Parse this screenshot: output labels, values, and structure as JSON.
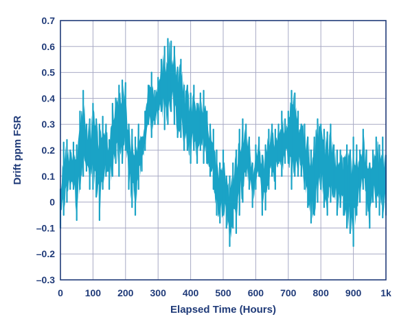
{
  "chart_data": {
    "type": "area",
    "title": "",
    "xlabel": "Elapsed Time (Hours)",
    "ylabel": "Drift ppm FSR",
    "xlim": [
      0,
      1000
    ],
    "ylim": [
      -0.3,
      0.7
    ],
    "x_ticks": [
      {
        "value": 0,
        "label": "0"
      },
      {
        "value": 100,
        "label": "100"
      },
      {
        "value": 200,
        "label": "200"
      },
      {
        "value": 300,
        "label": "300"
      },
      {
        "value": 400,
        "label": "400"
      },
      {
        "value": 500,
        "label": "500"
      },
      {
        "value": 600,
        "label": "600"
      },
      {
        "value": 700,
        "label": "700"
      },
      {
        "value": 800,
        "label": "800"
      },
      {
        "value": 900,
        "label": "900"
      },
      {
        "value": 1000,
        "label": "1k"
      }
    ],
    "y_ticks": [
      {
        "value": 0.7,
        "label": "0.7"
      },
      {
        "value": 0.6,
        "label": "0.6"
      },
      {
        "value": 0.5,
        "label": "0.5"
      },
      {
        "value": 0.4,
        "label": "0.4"
      },
      {
        "value": 0.3,
        "label": "0.3"
      },
      {
        "value": 0.2,
        "label": "0.2"
      },
      {
        "value": 0.1,
        "label": "0.1"
      },
      {
        "value": 0,
        "label": "0"
      },
      {
        "value": -0.1,
        "label": "–0.1"
      },
      {
        "value": -0.2,
        "label": "–0.2"
      },
      {
        "value": -0.3,
        "label": "–0.3"
      }
    ],
    "grid": true,
    "series_color": "#1aa3c6",
    "axis_text_color": "#1f3a78",
    "grid_color": "#a7a9c4",
    "series": [
      {
        "name": "",
        "x": [
          0,
          10,
          20,
          30,
          40,
          50,
          60,
          70,
          80,
          90,
          100,
          110,
          120,
          130,
          140,
          150,
          160,
          170,
          180,
          190,
          200,
          210,
          220,
          230,
          240,
          250,
          260,
          270,
          280,
          290,
          300,
          310,
          320,
          330,
          340,
          350,
          360,
          370,
          380,
          390,
          400,
          410,
          420,
          430,
          440,
          450,
          460,
          470,
          480,
          490,
          500,
          510,
          520,
          530,
          540,
          550,
          560,
          570,
          580,
          590,
          600,
          610,
          620,
          630,
          640,
          650,
          660,
          670,
          680,
          690,
          700,
          710,
          720,
          730,
          740,
          750,
          760,
          770,
          780,
          790,
          800,
          810,
          820,
          830,
          840,
          850,
          860,
          870,
          880,
          890,
          900,
          910,
          920,
          930,
          940,
          950,
          960,
          970,
          980,
          990,
          1000
        ],
        "min": [
          -0.1,
          -0.05,
          0.0,
          0.05,
          0.05,
          -0.07,
          0.05,
          0.1,
          0.12,
          0.05,
          0.05,
          0.02,
          -0.07,
          0.05,
          0.1,
          0.05,
          0.1,
          0.15,
          0.1,
          0.15,
          0.2,
          0.05,
          -0.02,
          -0.05,
          0.05,
          0.12,
          0.2,
          0.3,
          0.25,
          0.3,
          0.3,
          0.35,
          0.28,
          0.3,
          0.35,
          0.3,
          0.25,
          0.25,
          0.2,
          0.2,
          0.15,
          0.2,
          0.15,
          0.2,
          0.15,
          0.15,
          0.1,
          0.05,
          -0.05,
          -0.08,
          -0.05,
          -0.1,
          -0.17,
          -0.1,
          -0.12,
          -0.05,
          0.0,
          0.1,
          0.05,
          -0.02,
          0.05,
          0.1,
          -0.05,
          -0.03,
          0.05,
          0.1,
          0.05,
          0.15,
          0.1,
          0.15,
          0.15,
          0.05,
          0.1,
          0.1,
          0.1,
          0.05,
          -0.02,
          -0.08,
          -0.05,
          0.0,
          0.05,
          -0.02,
          -0.05,
          0.0,
          0.02,
          -0.05,
          -0.02,
          -0.05,
          -0.1,
          -0.12,
          -0.17,
          -0.05,
          0.0,
          0.05,
          -0.05,
          -0.1,
          0.0,
          -0.02,
          -0.05,
          -0.06,
          -0.05
        ],
        "max": [
          0.05,
          0.23,
          0.24,
          0.2,
          0.23,
          0.22,
          0.35,
          0.43,
          0.3,
          0.32,
          0.38,
          0.32,
          0.3,
          0.33,
          0.3,
          0.24,
          0.38,
          0.4,
          0.45,
          0.47,
          0.46,
          0.3,
          0.28,
          0.25,
          0.3,
          0.25,
          0.35,
          0.45,
          0.5,
          0.43,
          0.48,
          0.55,
          0.6,
          0.63,
          0.62,
          0.6,
          0.52,
          0.55,
          0.45,
          0.45,
          0.42,
          0.45,
          0.38,
          0.42,
          0.43,
          0.35,
          0.3,
          0.28,
          0.2,
          0.15,
          0.2,
          0.1,
          0.1,
          0.15,
          0.2,
          0.28,
          0.32,
          0.3,
          0.25,
          0.15,
          0.22,
          0.25,
          0.18,
          0.22,
          0.28,
          0.3,
          0.28,
          0.3,
          0.35,
          0.32,
          0.35,
          0.43,
          0.42,
          0.35,
          0.3,
          0.3,
          0.25,
          0.2,
          0.25,
          0.32,
          0.3,
          0.28,
          0.27,
          0.3,
          0.22,
          0.2,
          0.2,
          0.17,
          0.22,
          0.2,
          0.25,
          0.22,
          0.2,
          0.28,
          0.2,
          0.15,
          0.2,
          0.25,
          0.22,
          0.25,
          0.18
        ]
      }
    ]
  }
}
